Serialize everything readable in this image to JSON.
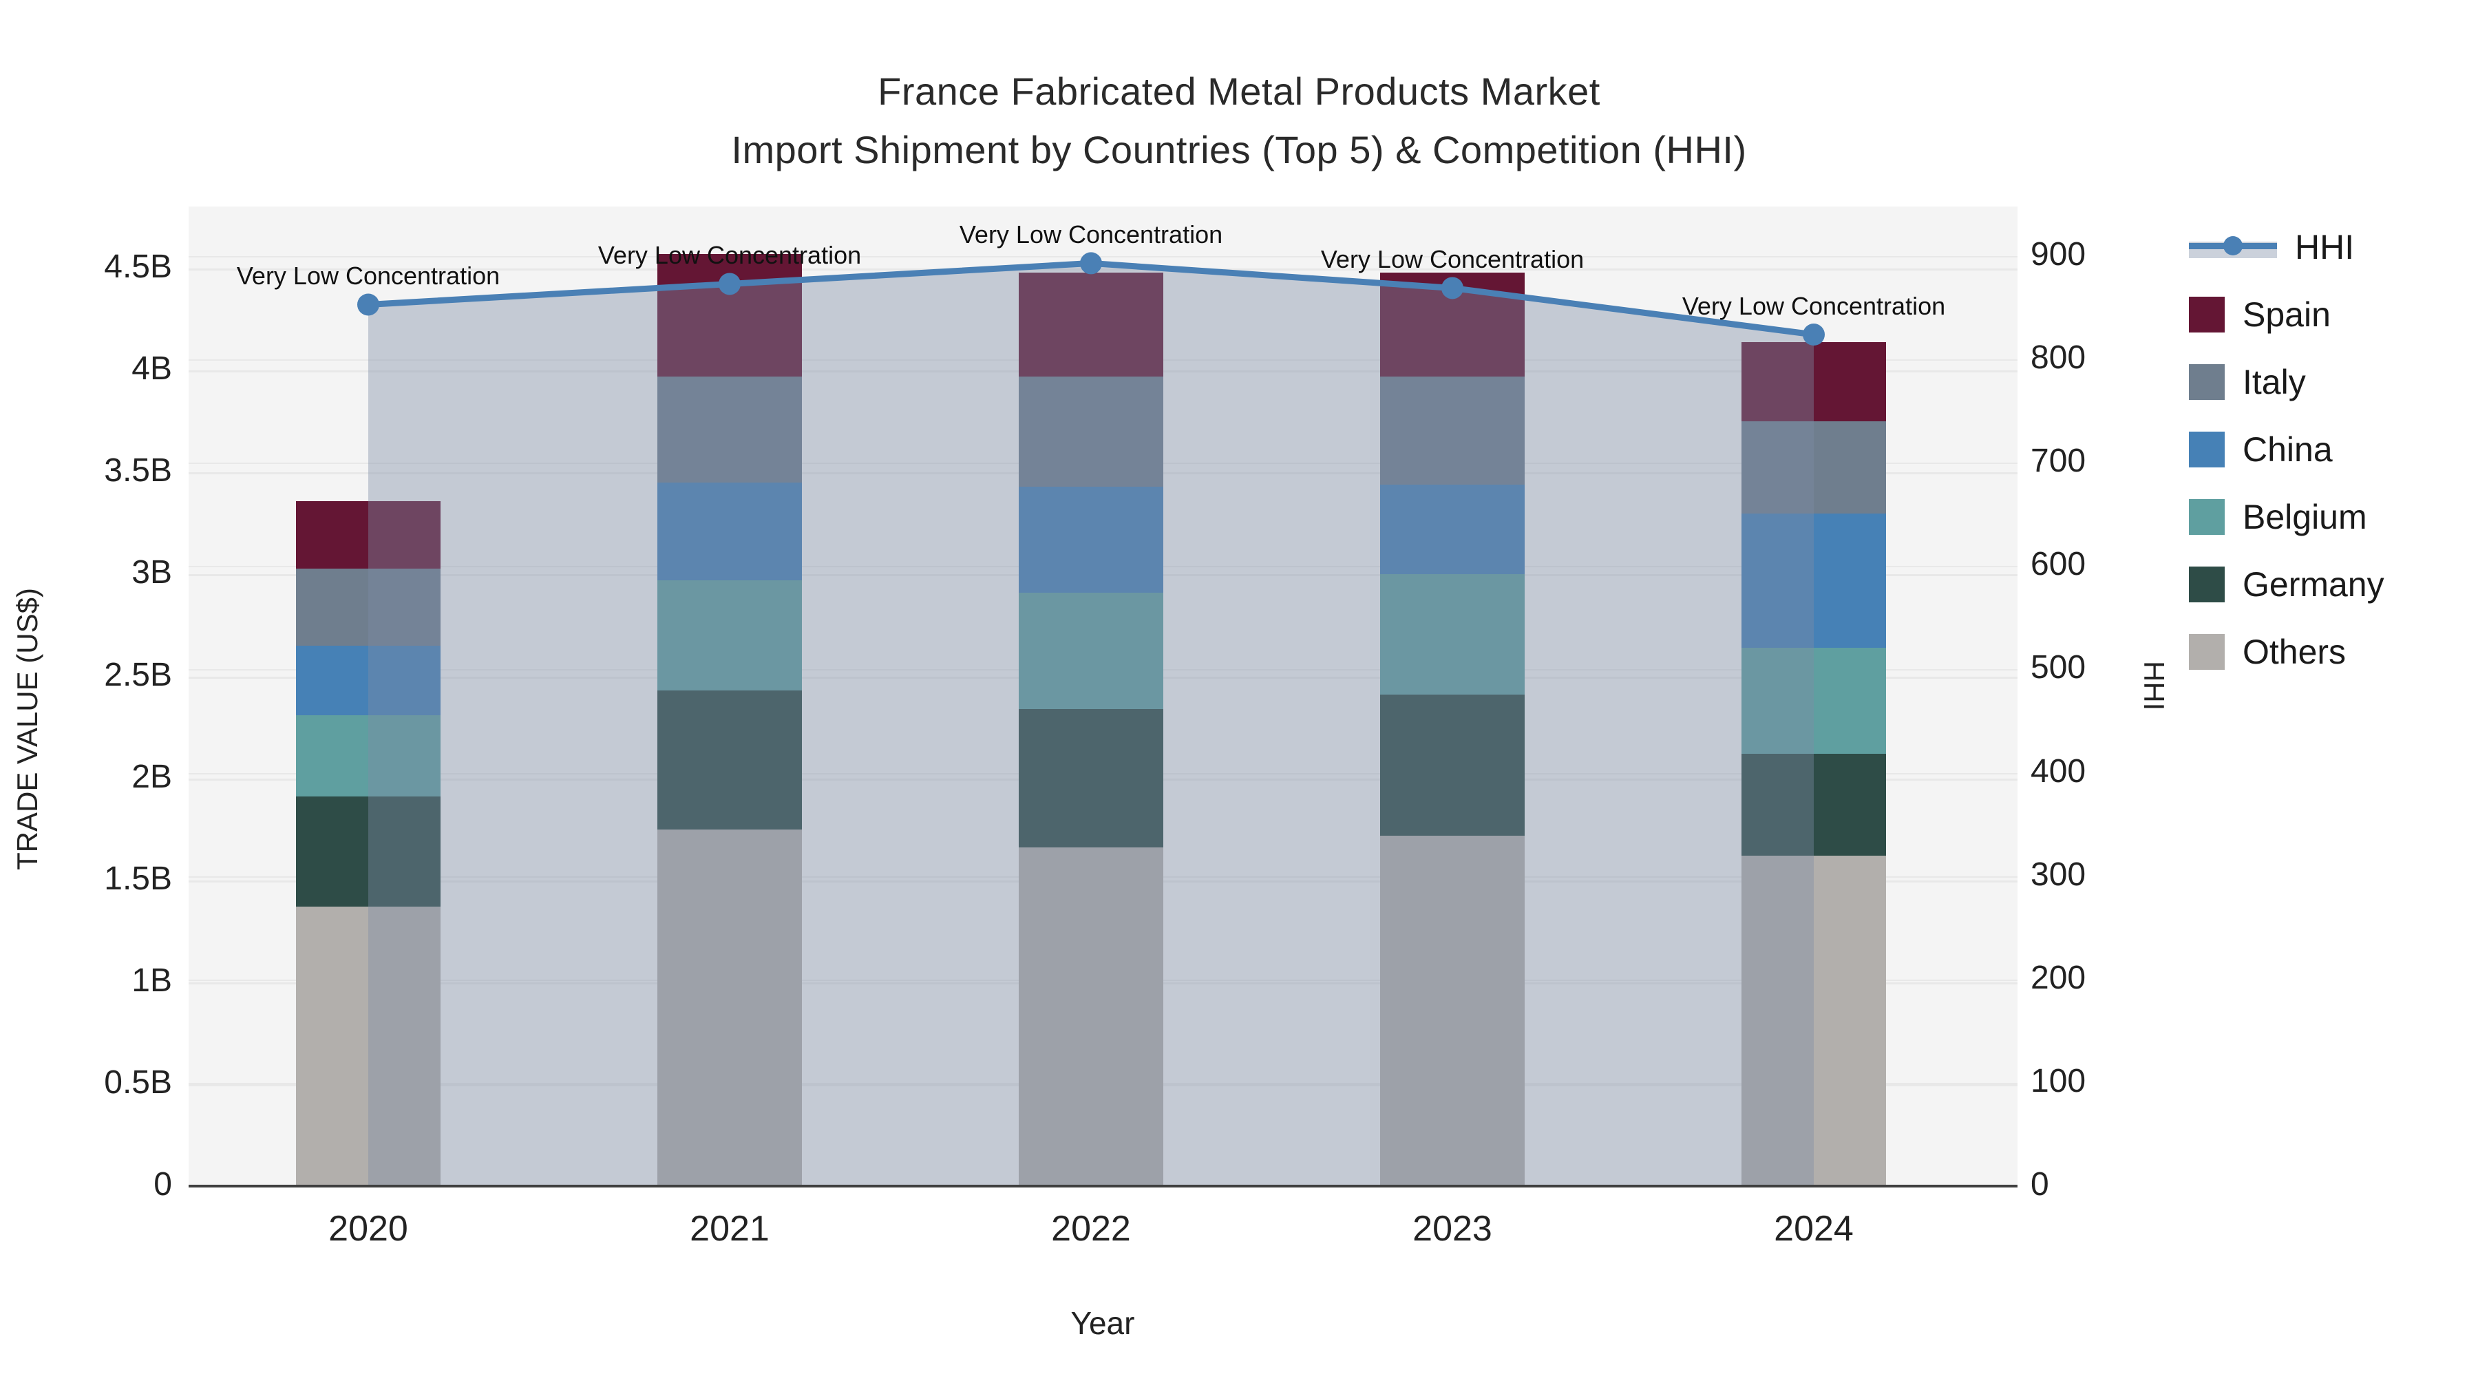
{
  "title": {
    "line1": "France Fabricated Metal Products Market",
    "line2": "Import Shipment by Countries (Top 5) & Competition (HHI)"
  },
  "axes": {
    "left_title": "TRADE VALUE (US$)",
    "right_title": "HHI",
    "x_title": "Year",
    "left_ticks": [
      {
        "value": 0,
        "label": "0"
      },
      {
        "value": 0.5,
        "label": "0.5B"
      },
      {
        "value": 1,
        "label": "1B"
      },
      {
        "value": 1.5,
        "label": "1.5B"
      },
      {
        "value": 2,
        "label": "2B"
      },
      {
        "value": 2.5,
        "label": "2.5B"
      },
      {
        "value": 3,
        "label": "3B"
      },
      {
        "value": 3.5,
        "label": "3.5B"
      },
      {
        "value": 4,
        "label": "4B"
      },
      {
        "value": 4.5,
        "label": "4.5B"
      }
    ],
    "right_ticks": [
      {
        "value": 0,
        "label": "0"
      },
      {
        "value": 100,
        "label": "100"
      },
      {
        "value": 200,
        "label": "200"
      },
      {
        "value": 300,
        "label": "300"
      },
      {
        "value": 400,
        "label": "400"
      },
      {
        "value": 500,
        "label": "500"
      },
      {
        "value": 600,
        "label": "600"
      },
      {
        "value": 700,
        "label": "700"
      },
      {
        "value": 800,
        "label": "800"
      },
      {
        "value": 900,
        "label": "900"
      }
    ]
  },
  "legend_items": [
    {
      "label": "HHI",
      "type": "line",
      "color": "#4a80b5"
    },
    {
      "label": "Spain",
      "type": "box",
      "color": "#641634"
    },
    {
      "label": "Italy",
      "type": "box",
      "color": "#6f7e8e"
    },
    {
      "label": "China",
      "type": "box",
      "color": "#4681b6"
    },
    {
      "label": "Belgium",
      "type": "box",
      "color": "#5f9fa0"
    },
    {
      "label": "Germany",
      "type": "box",
      "color": "#2e4c47"
    },
    {
      "label": "Others",
      "type": "box",
      "color": "#b2afac"
    }
  ],
  "annotation_text": "Very Low Concentration",
  "chart_data": {
    "type": "bar",
    "subtype": "stacked-bars-with-line",
    "title": "France Fabricated Metal Products Market — Import Shipment by Countries (Top 5) & Competition (HHI)",
    "xlabel": "Year",
    "ylabel": "TRADE VALUE (US$)",
    "y2label": "HHI",
    "ylim": [
      0,
      4.8
    ],
    "y2lim": [
      0,
      948
    ],
    "grid": true,
    "legend_position": "top-right",
    "categories": [
      "2020",
      "2021",
      "2022",
      "2023",
      "2024"
    ],
    "series": [
      {
        "name": "Others",
        "color": "#b2afac",
        "values": [
          1.37,
          1.75,
          1.66,
          1.72,
          1.62
        ]
      },
      {
        "name": "Germany",
        "color": "#2e4c47",
        "values": [
          0.54,
          0.68,
          0.68,
          0.69,
          0.5
        ]
      },
      {
        "name": "Belgium",
        "color": "#5f9fa0",
        "values": [
          0.4,
          0.54,
          0.57,
          0.59,
          0.52
        ]
      },
      {
        "name": "China",
        "color": "#4681b6",
        "values": [
          0.34,
          0.48,
          0.52,
          0.44,
          0.66
        ]
      },
      {
        "name": "Italy",
        "color": "#6f7e8e",
        "values": [
          0.38,
          0.52,
          0.54,
          0.53,
          0.45
        ]
      },
      {
        "name": "Spain",
        "color": "#641634",
        "values": [
          0.33,
          0.6,
          0.51,
          0.51,
          0.39
        ]
      }
    ],
    "bar_totals": [
      3.36,
      4.57,
      4.48,
      4.48,
      4.14
    ],
    "line_series": {
      "name": "HHI",
      "color": "#4a80b5",
      "fill_color": "rgba(125,140,165,0.40)",
      "values": [
        853,
        873,
        893,
        869,
        824
      ],
      "point_labels": [
        "Very Low Concentration",
        "Very Low Concentration",
        "Very Low Concentration",
        "Very Low Concentration",
        "Very Low Concentration"
      ]
    },
    "units": "billions US$"
  }
}
